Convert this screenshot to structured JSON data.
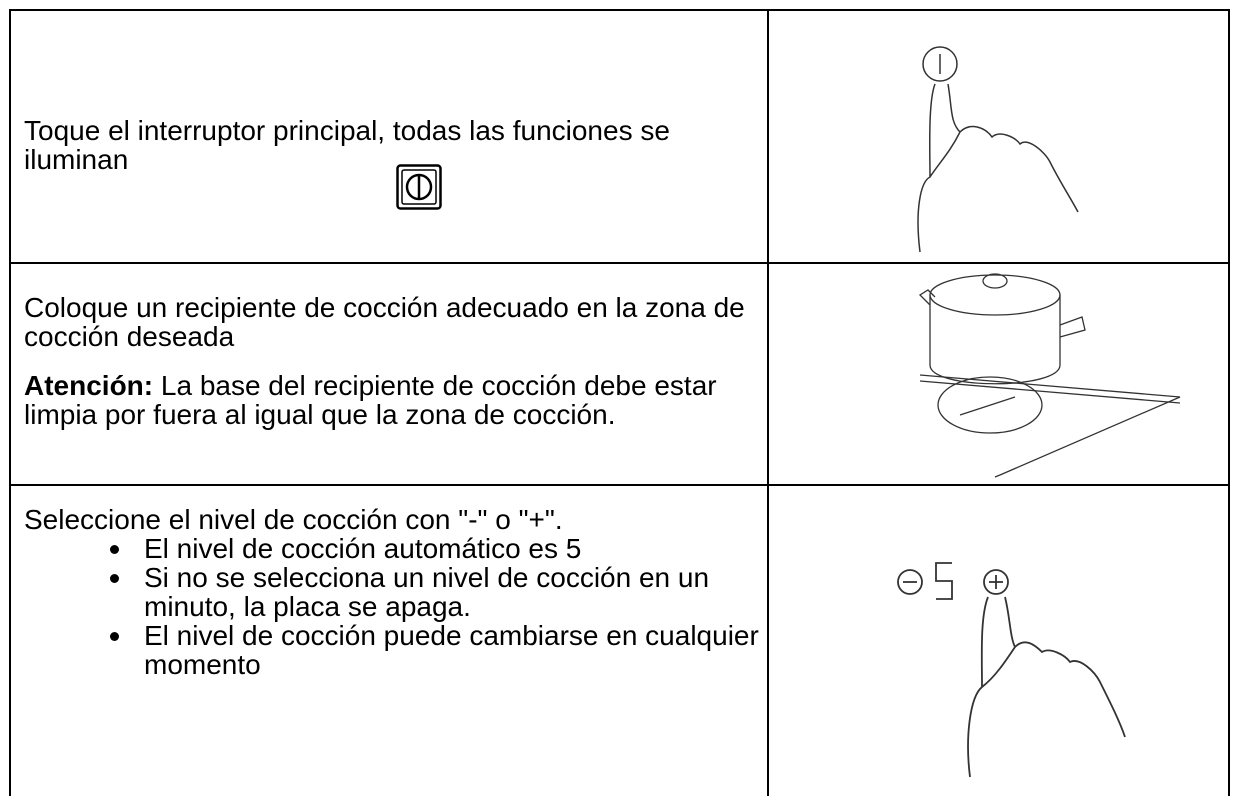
{
  "table": {
    "rows": [
      {
        "instruction": "Toque el interruptor principal, todas las funciones se iluminan"
      },
      {
        "instruction": "Coloque un recipiente de cocción adecuado en la zona de cocción deseada",
        "note_label": "Atención:",
        "note": "La base del recipiente de cocción debe estar limpia por fuera al igual que la zona de cocción."
      },
      {
        "instruction": "Seleccione el nivel de cocción con \"-\" o \"+\".",
        "bullets": [
          "El nivel de cocción automático es 5",
          "Si no se selecciona un nivel de cocción en un minuto, la placa se apaga.",
          "El nivel de cocción puede cambiarse en cualquier momento"
        ]
      }
    ]
  }
}
